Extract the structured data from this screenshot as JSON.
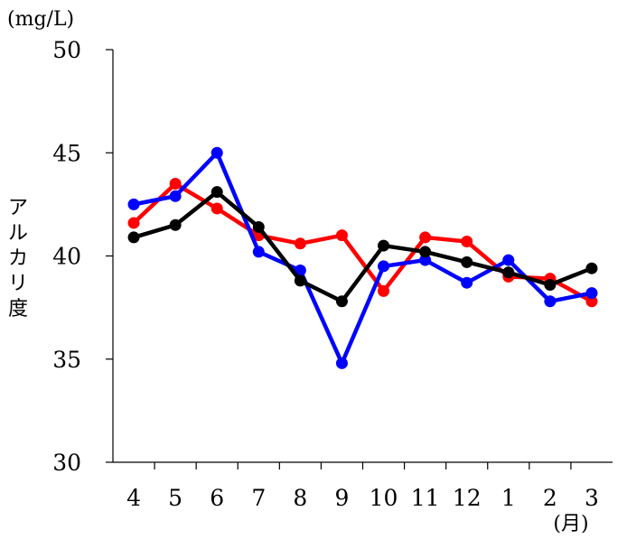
{
  "chart_data": {
    "type": "line",
    "categories": [
      "4",
      "5",
      "6",
      "7",
      "8",
      "9",
      "10",
      "11",
      "12",
      "1",
      "2",
      "3"
    ],
    "series": [
      {
        "color": "#ff0000",
        "values": [
          41.6,
          43.5,
          42.3,
          41.0,
          40.6,
          41.0,
          38.3,
          40.9,
          40.7,
          39.0,
          38.9,
          37.8
        ]
      },
      {
        "color": "#0000ff",
        "values": [
          42.5,
          42.9,
          45.0,
          40.2,
          39.3,
          34.8,
          39.5,
          39.8,
          38.7,
          39.8,
          37.8,
          38.2
        ]
      },
      {
        "color": "#000000",
        "values": [
          40.9,
          41.5,
          43.1,
          41.4,
          38.8,
          37.8,
          40.5,
          40.2,
          39.7,
          39.2,
          38.6,
          39.4
        ]
      }
    ],
    "ylim": [
      30,
      50
    ],
    "yticks": [
      "30",
      "35",
      "40",
      "45",
      "50"
    ],
    "ylabel_chars": [
      "ア",
      "ル",
      "カ",
      "リ",
      "度"
    ],
    "yunit": "(mg/L)",
    "xunit": "(月)",
    "grid": false
  }
}
